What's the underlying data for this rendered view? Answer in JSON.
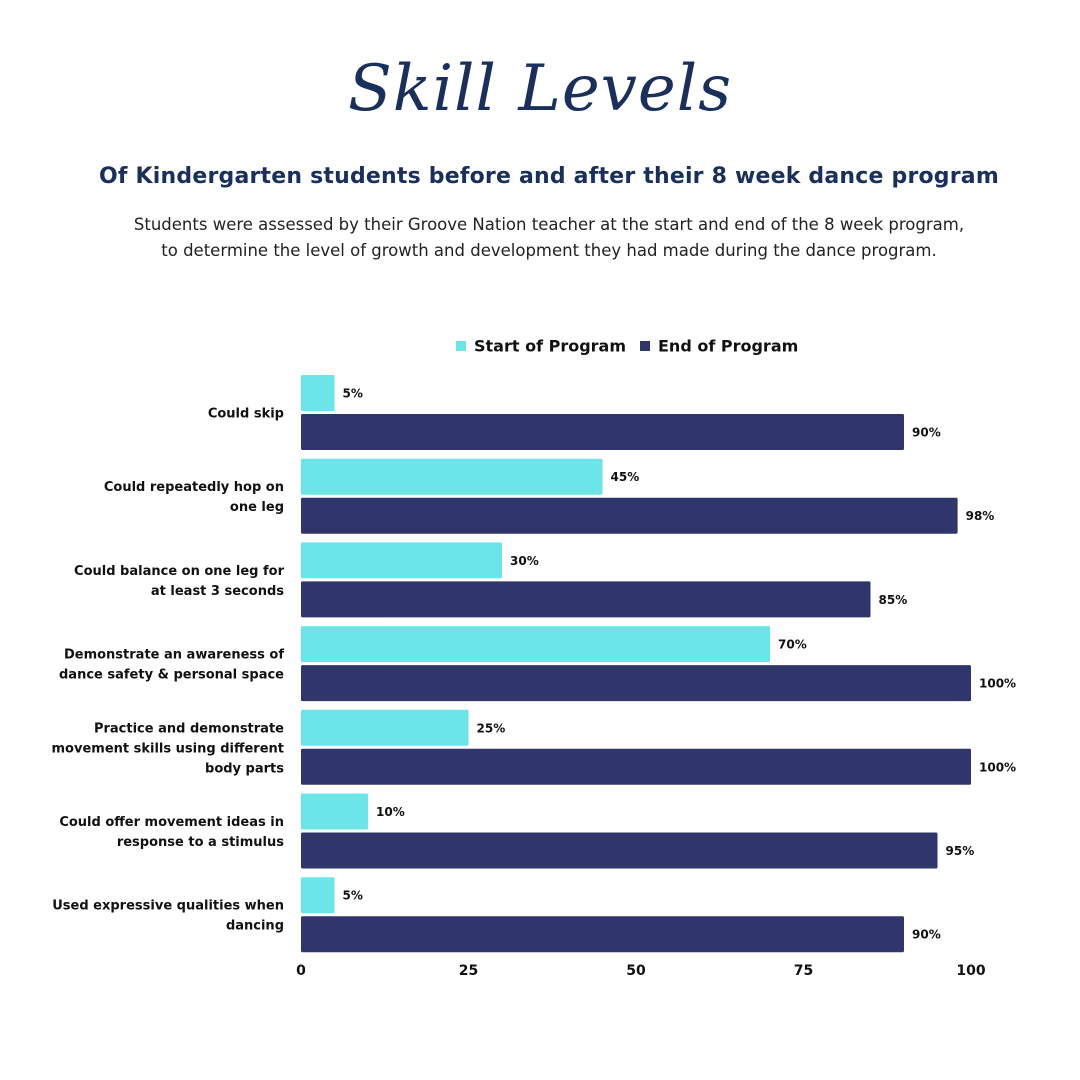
{
  "header": {
    "title": "Skill Levels",
    "subtitle": "Of Kindergarten students before and after their 8 week dance program",
    "description_lines": [
      "Students were assessed by their Groove Nation teacher at the start and end of the 8 week program,",
      "to determine the level of growth and development they had made during the dance program."
    ]
  },
  "colors": {
    "start": "#6ce5e8",
    "end": "#30366b",
    "title": "#1a2f5c",
    "text": "#111111"
  },
  "chart_data": {
    "type": "bar",
    "orientation": "horizontal",
    "categories": [
      [
        "Could skip"
      ],
      [
        "Could repeatedly hop on",
        "one leg"
      ],
      [
        "Could balance on one leg for",
        "at least 3 seconds"
      ],
      [
        "Demonstrate an awareness of",
        "dance safety & personal space"
      ],
      [
        "Practice and demonstrate",
        "movement skills using different",
        "body parts"
      ],
      [
        "Could offer movement ideas in",
        "response to a stimulus"
      ],
      [
        "Used expressive qualities when",
        "dancing"
      ]
    ],
    "series": [
      {
        "name": "Start of Program",
        "values": [
          5,
          45,
          30,
          70,
          25,
          10,
          5
        ],
        "labels": [
          "5%",
          "45%",
          "30%",
          "70%",
          "25%",
          "10%",
          "5%"
        ]
      },
      {
        "name": "End of Program",
        "values": [
          90,
          98,
          85,
          100,
          100,
          95,
          90
        ],
        "labels": [
          "90%",
          "98%",
          "85%",
          "100%",
          "100%",
          "95%",
          "90%"
        ]
      }
    ],
    "xlim": [
      0,
      100
    ],
    "x_ticks": [
      0,
      25,
      50,
      75,
      100
    ],
    "x_tick_labels": [
      "0",
      "25",
      "50",
      "75",
      "100"
    ],
    "legend_position": "top-center",
    "grid": false
  }
}
